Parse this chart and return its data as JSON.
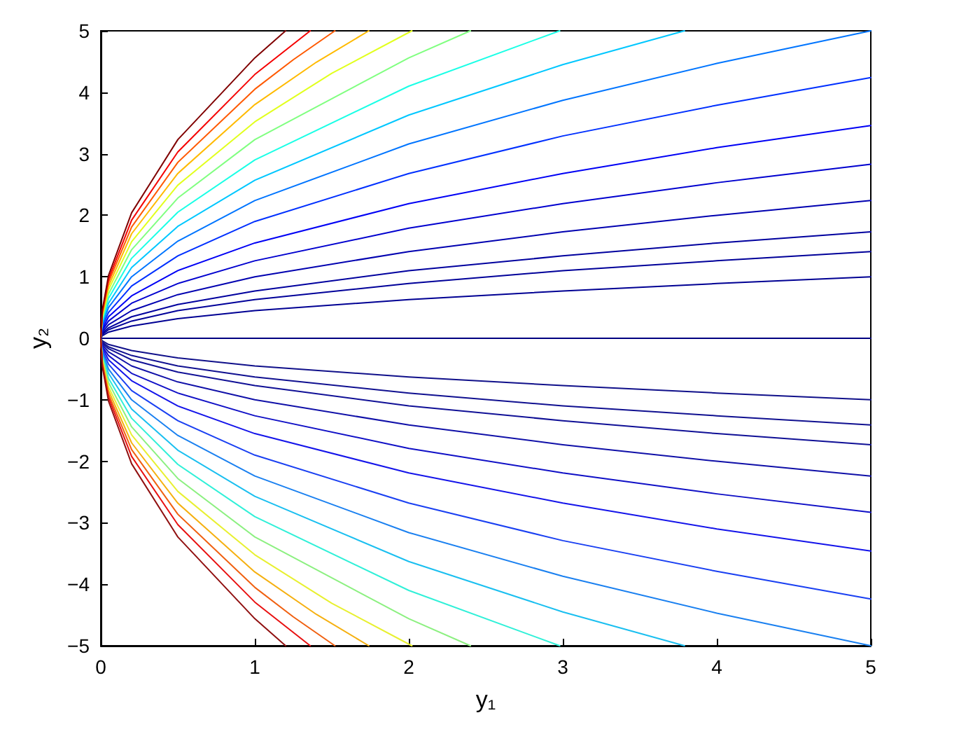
{
  "chart_data": {
    "type": "line",
    "xlabel": "y₁",
    "ylabel": "y₂",
    "xlim": [
      0,
      5
    ],
    "ylim": [
      -5,
      5
    ],
    "xticks": [
      0,
      1,
      2,
      3,
      4,
      5
    ],
    "yticks": [
      -5,
      -4,
      -3,
      -2,
      -1,
      0,
      1,
      2,
      3,
      4,
      5
    ],
    "grid": false,
    "marker": "none",
    "line_style": "solid",
    "series": [
      {
        "color": "#000080",
        "x": [
          0,
          5
        ],
        "values": [
          0,
          0
        ]
      },
      {
        "color": "#000093",
        "x": [
          0,
          0.01,
          0.05,
          0.2,
          0.5,
          1,
          2,
          3,
          4,
          5
        ],
        "values": [
          0,
          0.04,
          0.1,
          0.2,
          0.32,
          0.45,
          0.63,
          0.77,
          0.89,
          1.0
        ]
      },
      {
        "color": "#000099",
        "x": [
          0,
          0.01,
          0.05,
          0.2,
          0.5,
          1,
          2,
          3,
          4,
          5
        ],
        "values": [
          0,
          0.06,
          0.14,
          0.28,
          0.45,
          0.63,
          0.89,
          1.1,
          1.26,
          1.41
        ]
      },
      {
        "color": "#00009e",
        "x": [
          0,
          0.01,
          0.05,
          0.2,
          0.5,
          1,
          2,
          3,
          4,
          5
        ],
        "values": [
          0,
          0.08,
          0.17,
          0.35,
          0.55,
          0.77,
          1.1,
          1.34,
          1.55,
          1.73
        ]
      },
      {
        "color": "#0000b0",
        "x": [
          0,
          0.01,
          0.05,
          0.2,
          0.5,
          1,
          2,
          3,
          4,
          5
        ],
        "values": [
          0,
          0.1,
          0.22,
          0.45,
          0.71,
          1.0,
          1.41,
          1.73,
          2.0,
          2.24
        ]
      },
      {
        "color": "#0000cf",
        "x": [
          0,
          0.01,
          0.05,
          0.2,
          0.5,
          1,
          2,
          3,
          4,
          5
        ],
        "values": [
          0,
          0.13,
          0.28,
          0.57,
          0.89,
          1.26,
          1.79,
          2.19,
          2.53,
          2.83
        ]
      },
      {
        "color": "#0000f5",
        "x": [
          0,
          0.01,
          0.05,
          0.2,
          0.5,
          1,
          2,
          3,
          4,
          5
        ],
        "values": [
          0,
          0.15,
          0.35,
          0.69,
          1.1,
          1.55,
          2.19,
          2.68,
          3.1,
          3.46
        ]
      },
      {
        "color": "#0030ff",
        "x": [
          0,
          0.01,
          0.05,
          0.2,
          0.5,
          1,
          2,
          3,
          4,
          5
        ],
        "values": [
          0,
          0.19,
          0.42,
          0.85,
          1.34,
          1.9,
          2.68,
          3.29,
          3.79,
          4.24
        ]
      },
      {
        "color": "#0075ff",
        "x": [
          0,
          0.01,
          0.05,
          0.2,
          0.5,
          1,
          2,
          3,
          4,
          5
        ],
        "values": [
          0,
          0.22,
          0.5,
          1.0,
          1.58,
          2.24,
          3.16,
          3.87,
          4.47,
          5.0
        ]
      },
      {
        "color": "#00c7ff",
        "x": [
          0,
          0.01,
          0.05,
          0.2,
          0.5,
          1,
          2,
          3,
          3.79
        ],
        "values": [
          0,
          0.26,
          0.57,
          1.15,
          1.82,
          2.57,
          3.63,
          4.45,
          5.0
        ]
      },
      {
        "color": "#1affe6",
        "x": [
          0,
          0.01,
          0.05,
          0.2,
          0.5,
          1,
          2,
          2.98
        ],
        "values": [
          0,
          0.29,
          0.65,
          1.3,
          2.05,
          2.9,
          4.1,
          5.0
        ]
      },
      {
        "color": "#80ff80",
        "x": [
          0,
          0.01,
          0.05,
          0.2,
          0.5,
          1,
          2,
          2.4
        ],
        "values": [
          0,
          0.32,
          0.72,
          1.44,
          2.28,
          3.23,
          4.56,
          5.0
        ]
      },
      {
        "color": "#e2ff1d",
        "x": [
          0,
          0.01,
          0.05,
          0.2,
          0.5,
          1,
          1.5,
          2.02
        ],
        "values": [
          0,
          0.35,
          0.79,
          1.57,
          2.49,
          3.52,
          4.31,
          5.0
        ]
      },
      {
        "color": "#ffba00",
        "x": [
          0,
          0.01,
          0.05,
          0.2,
          0.5,
          1,
          1.4,
          1.74
        ],
        "values": [
          0,
          0.38,
          0.85,
          1.7,
          2.68,
          3.8,
          4.49,
          5.0
        ]
      },
      {
        "color": "#ff5900",
        "x": [
          0,
          0.01,
          0.05,
          0.2,
          0.5,
          1,
          1.25,
          1.52
        ],
        "values": [
          0,
          0.41,
          0.91,
          1.81,
          2.86,
          4.05,
          4.53,
          5.0
        ]
      },
      {
        "color": "#f50000",
        "x": [
          0,
          0.01,
          0.05,
          0.2,
          0.5,
          1,
          1.36
        ],
        "values": [
          0,
          0.43,
          0.96,
          1.92,
          3.03,
          4.29,
          5.0
        ]
      },
      {
        "color": "#800000",
        "x": [
          0,
          0.01,
          0.05,
          0.2,
          0.5,
          1,
          1.2
        ],
        "values": [
          0,
          0.46,
          1.02,
          2.04,
          3.23,
          4.56,
          5.0
        ]
      },
      {
        "color": "#10108a",
        "x": [
          0,
          0.01,
          0.05,
          0.2,
          0.5,
          1,
          2,
          3,
          4,
          5
        ],
        "values": [
          0,
          -0.04,
          -0.1,
          -0.2,
          -0.32,
          -0.45,
          -0.63,
          -0.77,
          -0.89,
          -1.0
        ]
      },
      {
        "color": "#101090",
        "x": [
          0,
          0.01,
          0.05,
          0.2,
          0.5,
          1,
          2,
          3,
          4,
          5
        ],
        "values": [
          0,
          -0.06,
          -0.14,
          -0.28,
          -0.45,
          -0.63,
          -0.89,
          -1.1,
          -1.26,
          -1.41
        ]
      },
      {
        "color": "#101096",
        "x": [
          0,
          0.01,
          0.05,
          0.2,
          0.5,
          1,
          2,
          3,
          4,
          5
        ],
        "values": [
          0,
          -0.08,
          -0.17,
          -0.35,
          -0.55,
          -0.77,
          -1.1,
          -1.34,
          -1.55,
          -1.73
        ]
      },
      {
        "color": "#1010a8",
        "x": [
          0,
          0.01,
          0.05,
          0.2,
          0.5,
          1,
          2,
          3,
          4,
          5
        ],
        "values": [
          0,
          -0.1,
          -0.22,
          -0.45,
          -0.71,
          -1.0,
          -1.41,
          -1.73,
          -2.0,
          -2.24
        ]
      },
      {
        "color": "#1010c6",
        "x": [
          0,
          0.01,
          0.05,
          0.2,
          0.5,
          1,
          2,
          3,
          4,
          5
        ],
        "values": [
          0,
          -0.13,
          -0.28,
          -0.57,
          -0.89,
          -1.26,
          -1.79,
          -2.19,
          -2.53,
          -2.83
        ]
      },
      {
        "color": "#1414ea",
        "x": [
          0,
          0.01,
          0.05,
          0.2,
          0.5,
          1,
          2,
          3,
          4,
          5
        ],
        "values": [
          0,
          -0.15,
          -0.35,
          -0.69,
          -1.1,
          -1.55,
          -2.19,
          -2.68,
          -3.1,
          -3.46
        ]
      },
      {
        "color": "#1a40f2",
        "x": [
          0,
          0.01,
          0.05,
          0.2,
          0.5,
          1,
          2,
          3,
          4,
          5
        ],
        "values": [
          0,
          -0.19,
          -0.42,
          -0.85,
          -1.34,
          -1.9,
          -2.68,
          -3.29,
          -3.79,
          -4.24
        ]
      },
      {
        "color": "#1a80f0",
        "x": [
          0,
          0.01,
          0.05,
          0.2,
          0.5,
          1,
          2,
          3,
          4,
          5
        ],
        "values": [
          0,
          -0.22,
          -0.5,
          -1.0,
          -1.58,
          -2.24,
          -3.16,
          -3.87,
          -4.47,
          -5.0
        ]
      },
      {
        "color": "#1abff0",
        "x": [
          0,
          0.01,
          0.05,
          0.2,
          0.5,
          1,
          2,
          3,
          3.79
        ],
        "values": [
          0,
          -0.26,
          -0.57,
          -1.15,
          -1.82,
          -2.57,
          -3.63,
          -4.45,
          -5.0
        ]
      },
      {
        "color": "#30f0d8",
        "x": [
          0,
          0.01,
          0.05,
          0.2,
          0.5,
          1,
          2,
          2.98
        ],
        "values": [
          0,
          -0.29,
          -0.65,
          -1.3,
          -2.05,
          -2.9,
          -4.1,
          -5.0
        ]
      },
      {
        "color": "#8cf080",
        "x": [
          0,
          0.01,
          0.05,
          0.2,
          0.5,
          1,
          2,
          2.4
        ],
        "values": [
          0,
          -0.32,
          -0.72,
          -1.44,
          -2.28,
          -3.23,
          -4.56,
          -5.0
        ]
      },
      {
        "color": "#e8f030",
        "x": [
          0,
          0.01,
          0.05,
          0.2,
          0.5,
          1,
          1.5,
          2.02
        ],
        "values": [
          0,
          -0.35,
          -0.79,
          -1.57,
          -2.49,
          -3.52,
          -4.31,
          -5.0
        ]
      },
      {
        "color": "#f5b010",
        "x": [
          0,
          0.01,
          0.05,
          0.2,
          0.5,
          1,
          1.4,
          1.74
        ],
        "values": [
          0,
          -0.38,
          -0.85,
          -1.7,
          -2.68,
          -3.8,
          -4.49,
          -5.0
        ]
      },
      {
        "color": "#f06010",
        "x": [
          0,
          0.01,
          0.05,
          0.2,
          0.5,
          1,
          1.25,
          1.52
        ],
        "values": [
          0,
          -0.41,
          -0.91,
          -1.81,
          -2.86,
          -4.05,
          -4.53,
          -5.0
        ]
      },
      {
        "color": "#e81010",
        "x": [
          0,
          0.01,
          0.05,
          0.2,
          0.5,
          1,
          1.36
        ],
        "values": [
          0,
          -0.43,
          -0.96,
          -1.92,
          -3.03,
          -4.29,
          -5.0
        ]
      },
      {
        "color": "#901010",
        "x": [
          0,
          0.01,
          0.05,
          0.2,
          0.5,
          1,
          1.2
        ],
        "values": [
          0,
          -0.46,
          -1.02,
          -2.04,
          -3.23,
          -4.56,
          -5.0
        ]
      }
    ]
  }
}
